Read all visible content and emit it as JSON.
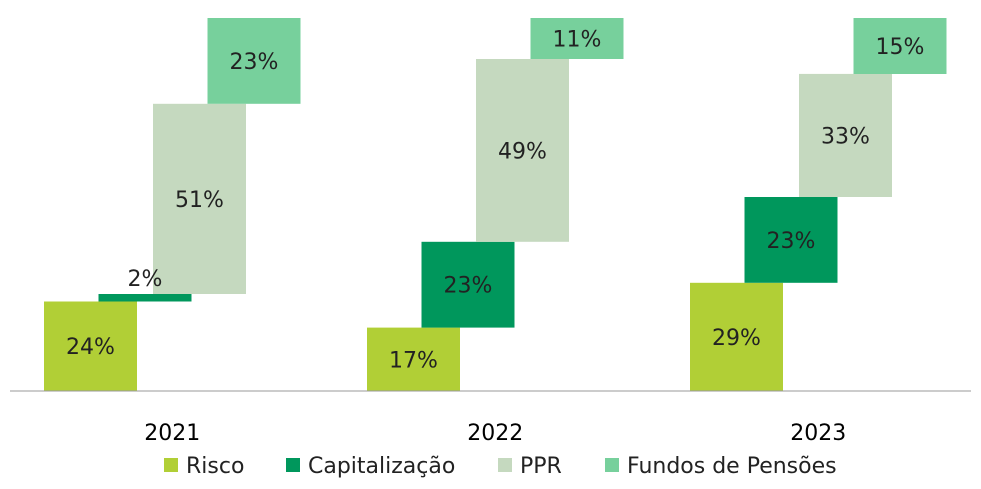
{
  "chart_data": {
    "type": "bar",
    "stacking": "staggered-waterfall",
    "categories": [
      "2021",
      "2022",
      "2023"
    ],
    "ylim": [
      0,
      100
    ],
    "grid": false,
    "legend_position": "bottom",
    "series": [
      {
        "name": "Risco",
        "color": "#B1CF36",
        "values": [
          24,
          17,
          29
        ],
        "labels": [
          "24%",
          "17%",
          "29%"
        ]
      },
      {
        "name": "Capitalização",
        "color": "#00975C",
        "values": [
          2,
          23,
          23
        ],
        "labels": [
          "2%",
          "23%",
          "23%"
        ]
      },
      {
        "name": "PPR",
        "color": "#C5D9BF",
        "values": [
          51,
          49,
          33
        ],
        "labels": [
          "51%",
          "49%",
          "33%"
        ]
      },
      {
        "name": "Fundos de Pensões",
        "color": "#77D09C",
        "values": [
          23,
          11,
          15
        ],
        "labels": [
          "23%",
          "11%",
          "15%"
        ]
      }
    ]
  }
}
